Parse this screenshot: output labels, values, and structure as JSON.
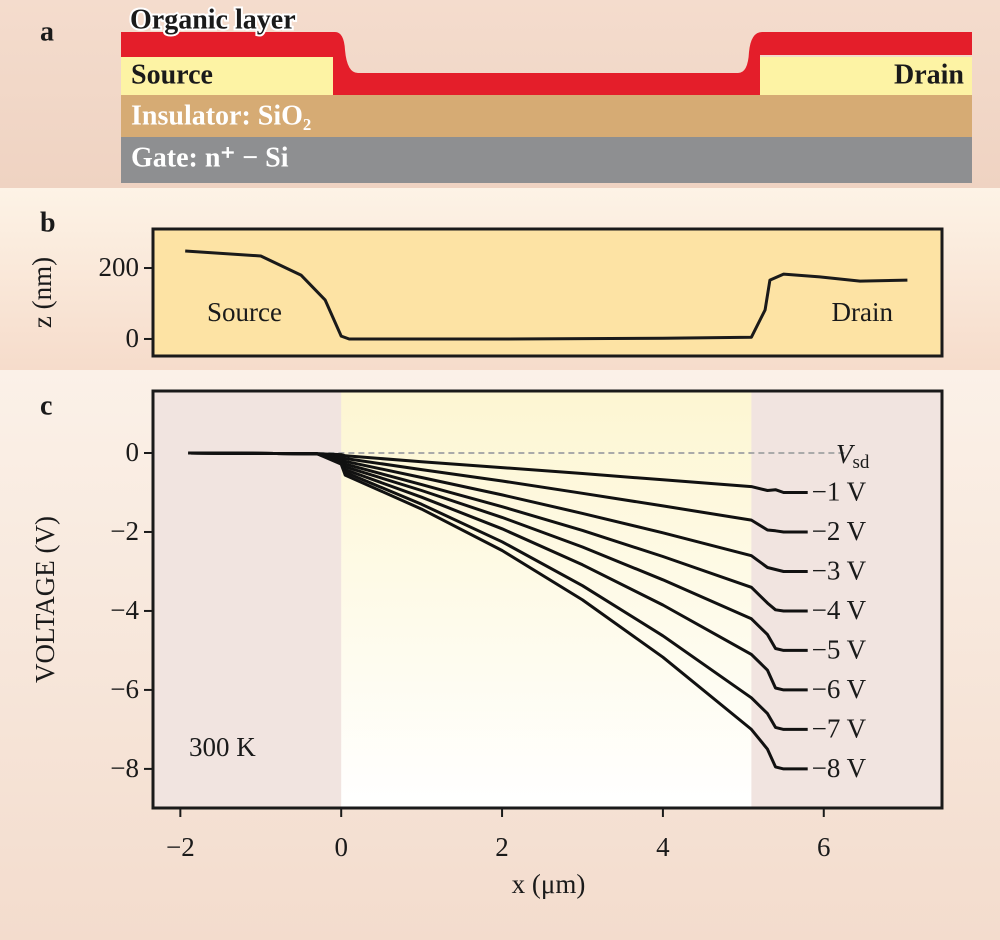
{
  "diagram": {
    "label": "a",
    "organic": "Organic layer",
    "source": "Source",
    "drain": "Drain",
    "insulator": "Insulator: SiO₂",
    "gate": "Gate: n⁺ − Si"
  },
  "chart_data": [
    {
      "type": "line",
      "label": "b",
      "ylabel": "z (nm)",
      "annotations": [
        "Source",
        "Drain"
      ],
      "x": [
        -1.94,
        -1.0,
        -0.5,
        -0.2,
        0,
        0.1,
        2,
        4,
        5.1,
        5.27,
        5.33,
        5.5,
        5.95,
        6.45,
        7.04
      ],
      "series": [
        {
          "color": "#1a1a1a",
          "values": [
            248,
            234,
            180,
            110,
            8,
            0,
            0,
            2,
            5,
            82,
            166,
            183,
            175,
            163,
            166
          ]
        }
      ],
      "xlim": [
        -2.34,
        7.47
      ],
      "ylim": [
        -48,
        310
      ],
      "yticks": [
        0,
        200
      ],
      "background": "#fde3a4"
    },
    {
      "type": "line",
      "label": "c",
      "xlabel": "x (μm)",
      "ylabel": "VOLTAGE (V)",
      "annotation": "300 K",
      "legend_title": {
        "symbol": "V",
        "subscript": "sd"
      },
      "x": [
        -1.9,
        -0.3,
        0,
        0.05,
        1,
        2,
        3,
        4,
        5.1,
        5.3,
        5.4,
        5.5,
        5.8
      ],
      "series": [
        {
          "name": "−1 V",
          "color": "#111111",
          "values": [
            0,
            -0.02,
            -0.04,
            -0.07,
            -0.22,
            -0.37,
            -0.52,
            -0.68,
            -0.85,
            -0.95,
            -0.93,
            -1.0,
            -1.0
          ]
        },
        {
          "name": "−2 V",
          "color": "#111111",
          "values": [
            0,
            -0.02,
            -0.07,
            -0.14,
            -0.42,
            -0.71,
            -1.02,
            -1.34,
            -1.7,
            -1.95,
            -1.97,
            -2.0,
            -2.0
          ]
        },
        {
          "name": "−3 V",
          "color": "#111111",
          "values": [
            0,
            -0.02,
            -0.11,
            -0.21,
            -0.62,
            -1.06,
            -1.53,
            -2.02,
            -2.6,
            -2.9,
            -2.95,
            -3.0,
            -3.0
          ]
        },
        {
          "name": "−4 V",
          "color": "#111111",
          "values": [
            0,
            -0.02,
            -0.14,
            -0.28,
            -0.8,
            -1.36,
            -1.96,
            -2.62,
            -3.4,
            -3.8,
            -3.97,
            -4.0,
            -4.0
          ]
        },
        {
          "name": "−5 V",
          "color": "#111111",
          "values": [
            0,
            -0.02,
            -0.18,
            -0.35,
            -0.95,
            -1.63,
            -2.38,
            -3.21,
            -4.2,
            -4.6,
            -4.95,
            -5.0,
            -5.0
          ]
        },
        {
          "name": "−6 V",
          "color": "#111111",
          "values": [
            0,
            -0.02,
            -0.21,
            -0.42,
            -1.12,
            -1.92,
            -2.83,
            -3.85,
            -5.1,
            -5.5,
            -5.95,
            -6.0,
            -6.0
          ]
        },
        {
          "name": "−7 V",
          "color": "#111111",
          "values": [
            0,
            -0.02,
            -0.25,
            -0.49,
            -1.3,
            -2.25,
            -3.36,
            -4.63,
            -6.2,
            -6.6,
            -6.95,
            -7.0,
            -7.0
          ]
        },
        {
          "name": "−8 V",
          "color": "#111111",
          "values": [
            0,
            -0.02,
            -0.28,
            -0.56,
            -1.42,
            -2.47,
            -3.72,
            -5.17,
            -7.0,
            -7.5,
            -7.95,
            -8.0,
            -8.0
          ]
        }
      ],
      "xlim": [
        -2.34,
        7.47
      ],
      "ylim": [
        -8.99,
        1.57
      ],
      "xticks": [
        {
          "value": -2,
          "label": "−2"
        },
        0,
        2,
        4,
        6
      ],
      "yticks": [
        {
          "value": -8,
          "label": "−8"
        },
        {
          "value": -6,
          "label": "−6"
        },
        {
          "value": -4,
          "label": "−4"
        },
        {
          "value": -2,
          "label": "−2"
        },
        0
      ],
      "channel_region": [
        0,
        5.1
      ],
      "hline": 0
    }
  ]
}
